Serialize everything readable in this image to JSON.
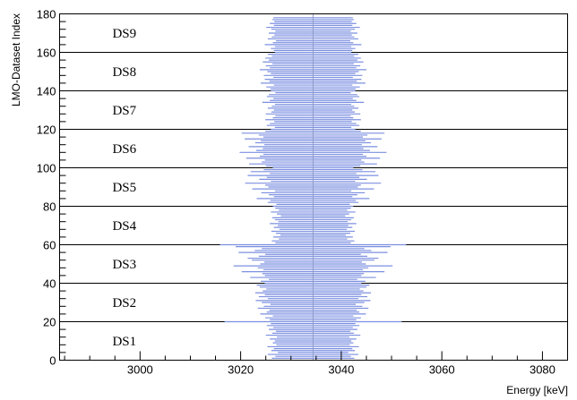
{
  "chart_data": {
    "type": "scatter",
    "title": "",
    "xlabel": "Energy [keV]",
    "ylabel": "LMO-Dataset Index",
    "xlim": [
      2984,
      3085
    ],
    "ylim": [
      0,
      180
    ],
    "xticks": [
      3000,
      3020,
      3040,
      3060,
      3080
    ],
    "yticks": [
      0,
      20,
      40,
      60,
      80,
      100,
      120,
      140,
      160,
      180
    ],
    "grid": false,
    "legend": "none",
    "series_color": "#7b8fe0",
    "center_line_color": "#8f9cc8",
    "reference_line": {
      "x": 3034.4
    },
    "group_separators": [
      20,
      40,
      60,
      80,
      100,
      120,
      140,
      160
    ],
    "groups": [
      {
        "label": "DS1",
        "y_label": 5
      },
      {
        "label": "DS2",
        "y_label": 15
      },
      {
        "label": "DS3",
        "y_label": 25
      },
      {
        "label": "DS4",
        "y_label": 35
      },
      {
        "label": "DS5",
        "y_label": 45
      },
      {
        "label": "DS6",
        "y_label": 55
      },
      {
        "label": "DS7",
        "y_label": 65
      },
      {
        "label": "DS8",
        "y_label": 75
      },
      {
        "label": "DS9",
        "y_label": 85
      }
    ],
    "points": {
      "index_start": 1,
      "index_step": 1,
      "count": 178,
      "center": 3034.4,
      "half_widths": [
        8.2,
        7.5,
        9.0,
        7.0,
        8.3,
        7.8,
        9.1,
        7.3,
        8.0,
        7.6,
        8.6,
        7.2,
        9.4,
        8.1,
        7.4,
        8.8,
        7.9,
        9.2,
        8.4,
        17.6,
        8.6,
        9.5,
        8.0,
        10.5,
        9.2,
        8.7,
        11.0,
        9.8,
        8.5,
        10.2,
        11.4,
        9.0,
        10.8,
        9.6,
        11.5,
        10.0,
        9.3,
        10.6,
        11.2,
        9.6,
        10.4,
        8.8,
        12.5,
        9.6,
        10.1,
        14.2,
        9.9,
        11.0,
        15.8,
        10.5,
        9.7,
        12.2,
        13.0,
        10.8,
        9.5,
        14.8,
        11.6,
        10.2,
        15.4,
        18.5,
        7.5,
        8.2,
        6.8,
        7.9,
        6.5,
        7.4,
        8.3,
        6.7,
        7.8,
        7.0,
        8.6,
        6.9,
        7.6,
        8.1,
        6.4,
        7.2,
        8.4,
        6.8,
        7.5,
        8.0,
        7.3,
        9.0,
        8.5,
        11.2,
        7.8,
        8.8,
        10.3,
        7.6,
        12.1,
        8.9,
        9.5,
        13.5,
        8.4,
        10.7,
        9.2,
        13.0,
        8.6,
        12.4,
        9.8,
        8.0,
        9.4,
        12.7,
        10.2,
        9.6,
        13.3,
        10.6,
        9.9,
        14.6,
        11.3,
        10.0,
        12.8,
        9.7,
        11.5,
        10.4,
        13.6,
        9.9,
        10.8,
        14.2,
        9.5,
        8.4,
        7.6,
        9.2,
        8.6,
        7.7,
        9.5,
        8.0,
        7.5,
        9.4,
        8.3,
        7.8,
        9.0,
        8.2,
        7.6,
        10.1,
        8.6,
        7.9,
        9.2,
        8.8,
        7.5,
        8.4,
        8.5,
        9.3,
        7.8,
        10.4,
        8.7,
        9.6,
        7.9,
        9.8,
        8.4,
        9.1,
        10.6,
        8.6,
        9.4,
        8.1,
        10.0,
        8.8,
        9.5,
        8.2,
        9.0,
        7.6,
        7.8,
        8.4,
        7.6,
        9.6,
        8.0,
        7.4,
        9.0,
        8.2,
        7.7,
        8.8,
        7.5,
        8.3,
        9.3,
        7.8,
        8.6,
        7.7,
        8.1,
        7.9
      ]
    }
  }
}
